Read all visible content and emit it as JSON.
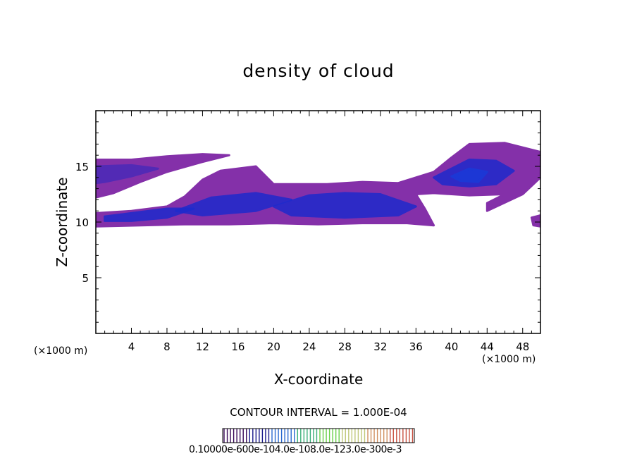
{
  "chart_data": {
    "type": "heatmap",
    "title": "density of cloud",
    "xlabel": "X-coordinate",
    "ylabel": "Z-coordinate",
    "x_unit_left": "(×1000 m)",
    "x_unit_right": "(×1000 m)",
    "xlim": [
      0,
      50
    ],
    "ylim": [
      0,
      20
    ],
    "xticks": [
      4,
      8,
      12,
      16,
      20,
      24,
      28,
      32,
      36,
      40,
      44,
      48
    ],
    "yticks": [
      5,
      10,
      15
    ],
    "contour_interval": "CONTOUR INTERVAL = 1.000E-04",
    "colorbar_labels": "0.10000e-600e-104.0e-108.0e-123.0e-300e-3",
    "colors": {
      "low": "#7a1fa2",
      "mid": "#4a2ab8",
      "high": "#1e2acc",
      "peak": "#1a3ad8"
    },
    "cloud_regions": [
      {
        "id": "upper-left-band",
        "points": [
          [
            0,
            15.6
          ],
          [
            4,
            15.6
          ],
          [
            8,
            15.9
          ],
          [
            12,
            16.1
          ],
          [
            15,
            16.0
          ],
          [
            12,
            15.4
          ],
          [
            8,
            14.5
          ],
          [
            5,
            13.6
          ],
          [
            2,
            12.6
          ],
          [
            0,
            12.2
          ]
        ],
        "level": "low"
      },
      {
        "id": "upper-left-core",
        "points": [
          [
            0,
            15.0
          ],
          [
            4,
            15.1
          ],
          [
            7,
            14.8
          ],
          [
            4,
            14.1
          ],
          [
            1,
            13.6
          ],
          [
            0,
            13.5
          ]
        ],
        "level": "mid"
      },
      {
        "id": "main-lower-band",
        "points": [
          [
            0,
            10.8
          ],
          [
            4,
            11.0
          ],
          [
            8,
            11.4
          ],
          [
            10,
            12.3
          ],
          [
            12,
            13.8
          ],
          [
            14,
            14.6
          ],
          [
            18,
            15.0
          ],
          [
            20,
            13.4
          ],
          [
            26,
            13.4
          ],
          [
            30,
            13.6
          ],
          [
            34,
            13.5
          ],
          [
            38,
            14.5
          ],
          [
            40,
            15.8
          ],
          [
            42,
            17.0
          ],
          [
            46,
            17.1
          ],
          [
            50,
            16.3
          ],
          [
            50,
            14.0
          ],
          [
            48,
            12.5
          ],
          [
            44,
            11.0
          ],
          [
            44,
            11.7
          ],
          [
            46,
            12.5
          ],
          [
            42,
            12.4
          ],
          [
            38,
            12.6
          ],
          [
            36,
            12.5
          ],
          [
            37,
            11.2
          ],
          [
            38,
            9.7
          ],
          [
            35,
            9.9
          ],
          [
            30,
            9.9
          ],
          [
            25,
            9.8
          ],
          [
            20,
            9.9
          ],
          [
            15,
            9.8
          ],
          [
            10,
            9.8
          ],
          [
            5,
            9.7
          ],
          [
            0,
            9.6
          ]
        ],
        "level": "low"
      },
      {
        "id": "main-lower-core-left",
        "points": [
          [
            1,
            10.5
          ],
          [
            4,
            10.8
          ],
          [
            8,
            11.2
          ],
          [
            11,
            11.2
          ],
          [
            8,
            10.4
          ],
          [
            4,
            10.1
          ],
          [
            1,
            10.1
          ]
        ],
        "level": "high"
      },
      {
        "id": "main-lower-core-mid",
        "points": [
          [
            9,
            11.0
          ],
          [
            13,
            12.2
          ],
          [
            18,
            12.6
          ],
          [
            22,
            12.0
          ],
          [
            18,
            11.0
          ],
          [
            12,
            10.6
          ]
        ],
        "level": "high"
      },
      {
        "id": "main-lower-core-right",
        "points": [
          [
            20,
            11.4
          ],
          [
            24,
            12.4
          ],
          [
            28,
            12.6
          ],
          [
            32,
            12.5
          ],
          [
            36,
            11.4
          ],
          [
            34,
            10.6
          ],
          [
            28,
            10.4
          ],
          [
            22,
            10.6
          ]
        ],
        "level": "high"
      },
      {
        "id": "right-cloud-core",
        "points": [
          [
            38,
            14.0
          ],
          [
            40,
            14.8
          ],
          [
            42,
            15.6
          ],
          [
            45,
            15.5
          ],
          [
            47,
            14.6
          ],
          [
            45,
            13.4
          ],
          [
            42,
            13.2
          ],
          [
            39,
            13.4
          ]
        ],
        "level": "high"
      },
      {
        "id": "right-cloud-peak",
        "points": [
          [
            40,
            14.1
          ],
          [
            42,
            14.8
          ],
          [
            44,
            14.5
          ],
          [
            43,
            13.6
          ],
          [
            41,
            13.7
          ]
        ],
        "level": "peak"
      },
      {
        "id": "right-edge-blob",
        "points": [
          [
            49,
            10.4
          ],
          [
            50,
            10.6
          ],
          [
            50,
            9.6
          ],
          [
            49.2,
            9.7
          ]
        ],
        "level": "low"
      }
    ]
  }
}
